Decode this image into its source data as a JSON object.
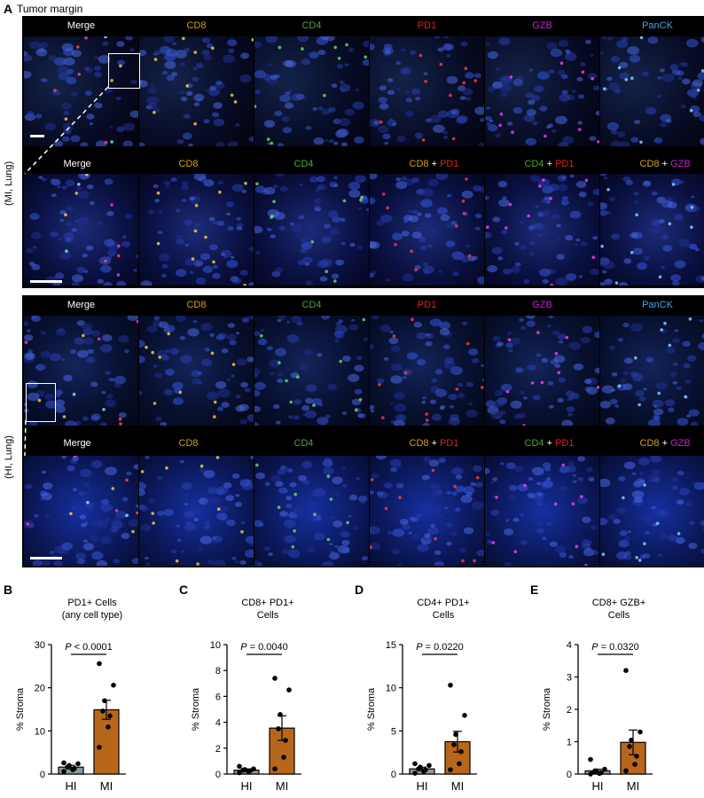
{
  "panelA": {
    "letter": "A",
    "subtitle": "Tumor margin",
    "mi_label": "(MI, Lung)",
    "hi_label": "(HI, Lung)",
    "top_headers": [
      "Merge",
      "CD8",
      "CD4",
      "PD1",
      "GZB",
      "PanCK"
    ],
    "zoom_headers": [
      {
        "a": "Merge",
        "b": "",
        "sep": ""
      },
      {
        "a": "CD8",
        "b": "",
        "sep": ""
      },
      {
        "a": "CD4",
        "b": "",
        "sep": ""
      },
      {
        "a": "CD8",
        "b": "PD1",
        "sep": " + "
      },
      {
        "a": "CD4",
        "b": "PD1",
        "sep": " + "
      },
      {
        "a": "CD8",
        "b": "GZB",
        "sep": " + "
      }
    ],
    "colors": {
      "Merge": "#000000",
      "CD8": "#d4a017",
      "CD4": "#4aa832",
      "PD1": "#e0201c",
      "GZB": "#c81fd2",
      "PanCK": "#45a8e0"
    }
  },
  "charts": [
    {
      "letter": "B",
      "title": "PD1+ Cells\n(any cell type)",
      "ylabel": "% Stroma",
      "ylim": [
        0,
        30
      ],
      "yticks": [
        0,
        10,
        20,
        30
      ],
      "categories": [
        "HI",
        "MI"
      ],
      "means": [
        1.6,
        14.9
      ],
      "sem": [
        0.4,
        2.2
      ],
      "points": {
        "HI": [
          0.6,
          1.0,
          1.3,
          1.6,
          2.0,
          2.4,
          2.6
        ],
        "MI": [
          6.2,
          10.9,
          13.5,
          14.6,
          17.0,
          20.6,
          25.6
        ]
      },
      "pvalue": "P < 0.0001"
    },
    {
      "letter": "C",
      "title": "CD8+ PD1+\nCells",
      "ylabel": "% Stroma",
      "ylim": [
        0,
        10
      ],
      "yticks": [
        0,
        2,
        4,
        6,
        8,
        10
      ],
      "categories": [
        "HI",
        "MI"
      ],
      "means": [
        0.3,
        3.55
      ],
      "sem": [
        0.1,
        0.95
      ],
      "points": {
        "HI": [
          0.1,
          0.2,
          0.25,
          0.3,
          0.35,
          0.4,
          0.6
        ],
        "MI": [
          0.4,
          1.3,
          2.6,
          3.5,
          4.6,
          6.5,
          7.4
        ]
      },
      "pvalue": "P = 0.0040"
    },
    {
      "letter": "D",
      "title": "CD4+ PD1+\nCells",
      "ylabel": "% Stroma",
      "ylim": [
        0,
        15
      ],
      "yticks": [
        0,
        5,
        10,
        15
      ],
      "categories": [
        "HI",
        "MI"
      ],
      "means": [
        0.6,
        3.75
      ],
      "sem": [
        0.2,
        1.2
      ],
      "points": {
        "HI": [
          0.1,
          0.3,
          0.5,
          0.6,
          0.8,
          1.0,
          1.2
        ],
        "MI": [
          0.5,
          1.2,
          2.6,
          3.4,
          4.6,
          6.8,
          10.3
        ]
      },
      "pvalue": "P = 0.0220"
    },
    {
      "letter": "E",
      "title": "CD8+ GZB+\nCells",
      "ylabel": "% Stroma",
      "ylim": [
        0,
        4
      ],
      "yticks": [
        0,
        1,
        2,
        3,
        4
      ],
      "categories": [
        "HI",
        "MI"
      ],
      "means": [
        0.1,
        0.98
      ],
      "sem": [
        0.05,
        0.38
      ],
      "points": {
        "HI": [
          0.0,
          0.02,
          0.04,
          0.07,
          0.1,
          0.15,
          0.45
        ],
        "MI": [
          0.1,
          0.3,
          0.55,
          0.85,
          1.05,
          1.3,
          3.2
        ]
      },
      "pvalue": "P = 0.0320"
    }
  ],
  "bar_color": "#b8671a"
}
